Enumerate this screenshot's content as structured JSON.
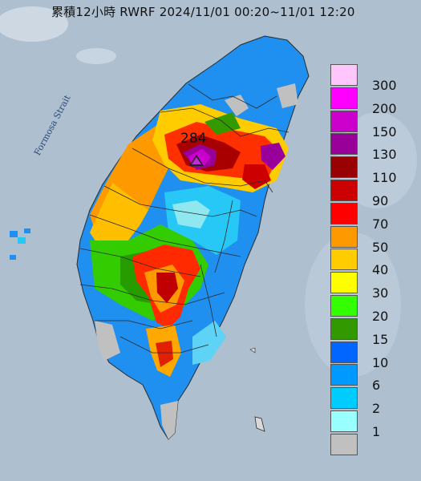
{
  "header": {
    "title": "累積12小時 RWRF 2024/11/01 00:20~11/01 12:20"
  },
  "map": {
    "strait_label": "Formosa Strait",
    "max_value": "284",
    "colors": {
      "sea": "#aebfd0",
      "land_boundary": "#333333"
    }
  },
  "legend": {
    "items": [
      {
        "label": "300",
        "color": "#ffc6fb"
      },
      {
        "label": "200",
        "color": "#ff00ff"
      },
      {
        "label": "150",
        "color": "#cc00cc"
      },
      {
        "label": "130",
        "color": "#990099"
      },
      {
        "label": "110",
        "color": "#990000"
      },
      {
        "label": "90",
        "color": "#cc0000"
      },
      {
        "label": "70",
        "color": "#ff0000"
      },
      {
        "label": "50",
        "color": "#ff9900"
      },
      {
        "label": "40",
        "color": "#ffcc00"
      },
      {
        "label": "30",
        "color": "#ffff00"
      },
      {
        "label": "20",
        "color": "#33ff00"
      },
      {
        "label": "15",
        "color": "#339900"
      },
      {
        "label": "10",
        "color": "#0066ff"
      },
      {
        "label": "6",
        "color": "#0099ff"
      },
      {
        "label": "2",
        "color": "#00ccff"
      },
      {
        "label": "1",
        "color": "#99ffff"
      },
      {
        "label": "",
        "color": "#c0c0c0"
      }
    ]
  }
}
